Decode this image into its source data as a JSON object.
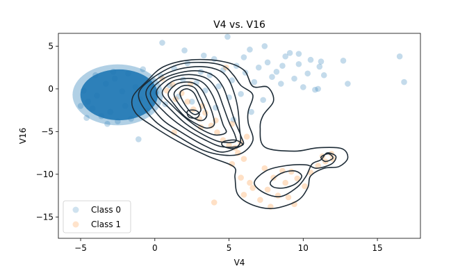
{
  "chart_data": {
    "type": "scatter",
    "title": "V4 vs. V16",
    "xlabel": "V4",
    "ylabel": "V16",
    "xlim": [
      -6.5,
      17.9
    ],
    "ylim": [
      -17.5,
      6.5
    ],
    "xticks": [
      -5,
      0,
      5,
      10,
      15
    ],
    "yticks": [
      5,
      0,
      -5,
      -10,
      -15
    ],
    "grid": false,
    "legend": {
      "placement": "lower-left"
    },
    "series": [
      {
        "name": "Class 0",
        "color": "#1f77b4",
        "alpha": 0.12,
        "points": [
          [
            -4.5,
            -1.5
          ],
          [
            -4.2,
            -2.3
          ],
          [
            -3.9,
            -0.8
          ],
          [
            -3.6,
            -3.2
          ],
          [
            -3.3,
            0.6
          ],
          [
            -3.0,
            -2.7
          ],
          [
            -2.7,
            1.2
          ],
          [
            -2.5,
            -3.8
          ],
          [
            -2.2,
            -0.3
          ],
          [
            -2.0,
            -2.0
          ],
          [
            -1.8,
            1.8
          ],
          [
            -1.6,
            -3.5
          ],
          [
            -1.3,
            0.2
          ],
          [
            -1.0,
            -1.2
          ],
          [
            -0.8,
            2.3
          ],
          [
            -0.5,
            -2.6
          ],
          [
            -0.2,
            0.9
          ],
          [
            0.1,
            -0.4
          ],
          [
            0.4,
            1.5
          ],
          [
            0.7,
            -1.8
          ],
          [
            1.0,
            0.4
          ],
          [
            1.3,
            2.4
          ],
          [
            1.6,
            -0.9
          ],
          [
            1.9,
            1.1
          ],
          [
            2.2,
            3.0
          ],
          [
            2.5,
            -1.5
          ],
          [
            2.8,
            0.7
          ],
          [
            3.1,
            2.0
          ],
          [
            3.4,
            -0.2
          ],
          [
            3.7,
            1.6
          ],
          [
            4.0,
            3.5
          ],
          [
            4.3,
            0.3
          ],
          [
            4.6,
            2.2
          ],
          [
            4.9,
            6.1
          ],
          [
            5.2,
            1.0
          ],
          [
            5.5,
            2.7
          ],
          [
            5.8,
            -0.6
          ],
          [
            6.1,
            1.9
          ],
          [
            6.4,
            4.6
          ],
          [
            6.7,
            0.8
          ],
          [
            7.0,
            2.5
          ],
          [
            7.3,
            -1.3
          ],
          [
            7.6,
            3.1
          ],
          [
            7.9,
            1.4
          ],
          [
            8.2,
            2.0
          ],
          [
            8.5,
            0.6
          ],
          [
            8.8,
            3.8
          ],
          [
            9.1,
            4.2
          ],
          [
            9.4,
            1.2
          ],
          [
            9.7,
            2.9
          ],
          [
            10.0,
            0.2
          ],
          [
            10.3,
            1.8
          ],
          [
            10.5,
            3.4
          ],
          [
            10.8,
            -0.1
          ],
          [
            11.1,
            2.6
          ],
          [
            11.4,
            1.6
          ],
          [
            11.2,
            3.2
          ],
          [
            11.0,
            0.0
          ],
          [
            12.7,
            3.3
          ],
          [
            13.0,
            0.6
          ],
          [
            16.5,
            3.8
          ],
          [
            16.8,
            0.8
          ],
          [
            -5.0,
            -2.0
          ],
          [
            -4.8,
            -0.2
          ],
          [
            -4.6,
            -3.4
          ],
          [
            -4.0,
            1.6
          ],
          [
            -3.2,
            -4.1
          ],
          [
            -2.8,
            2.0
          ],
          [
            -1.1,
            -5.9
          ],
          [
            0.5,
            5.4
          ],
          [
            2.0,
            4.5
          ],
          [
            3.3,
            3.9
          ],
          [
            5.3,
            -3.6
          ],
          [
            6.5,
            -2.7
          ],
          [
            4.1,
            -2.2
          ],
          [
            5.0,
            -1.0
          ],
          [
            6.0,
            3.7
          ],
          [
            7.4,
            5.0
          ],
          [
            8.6,
            2.7
          ],
          [
            9.7,
            4.1
          ]
        ],
        "dense_blob": {
          "x_min": -5.4,
          "x_max": 0.4,
          "y_min": -4.2,
          "y_max": 2.8
        }
      },
      {
        "name": "Class 1",
        "color": "#ff7f0e",
        "alpha": 0.12,
        "points": [
          [
            0.5,
            1.2
          ],
          [
            1.2,
            0.5
          ],
          [
            1.8,
            -0.5
          ],
          [
            2.2,
            -1.5
          ],
          [
            2.6,
            -2.4
          ],
          [
            3.0,
            -3.5
          ],
          [
            3.4,
            -2.8
          ],
          [
            3.8,
            -4.3
          ],
          [
            4.2,
            -5.1
          ],
          [
            4.6,
            -6.0
          ],
          [
            5.0,
            -6.6
          ],
          [
            5.4,
            -6.9
          ],
          [
            5.8,
            -6.3
          ],
          [
            5.6,
            -7.5
          ],
          [
            6.2,
            -5.6
          ],
          [
            6.0,
            -8.2
          ],
          [
            4.1,
            -3.7
          ],
          [
            3.2,
            -2.0
          ],
          [
            2.4,
            0.6
          ],
          [
            1.4,
            -1.2
          ],
          [
            0.8,
            -0.2
          ],
          [
            4.8,
            2.5
          ],
          [
            5.2,
            -8.8
          ],
          [
            5.8,
            -10.4
          ],
          [
            6.6,
            -11.6
          ],
          [
            6.0,
            -12.4
          ],
          [
            7.1,
            -13.0
          ],
          [
            7.8,
            -13.8
          ],
          [
            8.3,
            -12.5
          ],
          [
            8.8,
            -11.0
          ],
          [
            9.2,
            -9.7
          ],
          [
            9.6,
            -10.5
          ],
          [
            10.1,
            -11.4
          ],
          [
            8.6,
            -9.6
          ],
          [
            8.0,
            -10.4
          ],
          [
            7.6,
            -11.8
          ],
          [
            10.5,
            -9.8
          ],
          [
            11.0,
            -9.0
          ],
          [
            11.5,
            -8.5
          ],
          [
            11.9,
            -7.6
          ],
          [
            12.0,
            -8.2
          ],
          [
            11.3,
            -7.9
          ],
          [
            4.0,
            -13.3
          ],
          [
            1.3,
            -5.1
          ],
          [
            6.4,
            -11.0
          ],
          [
            9.4,
            -13.5
          ],
          [
            9.0,
            -12.7
          ],
          [
            7.4,
            -9.3
          ],
          [
            3.1,
            -4.5
          ],
          [
            5.2,
            -4.1
          ]
        ]
      }
    ],
    "contours": {
      "color": "#1d2b36",
      "levels": [
        [
          [
            -1.5,
            -1
          ],
          [
            -0.6,
            0.8
          ],
          [
            0.6,
            2.6
          ],
          [
            2.5,
            3.4
          ],
          [
            4.6,
            3.2
          ],
          [
            6.0,
            2.2
          ],
          [
            6.6,
            0.3
          ],
          [
            7.6,
            0.2
          ],
          [
            8.0,
            -1.4
          ],
          [
            7.3,
            -3.1
          ],
          [
            7.1,
            -4.6
          ],
          [
            7.4,
            -6.8
          ],
          [
            9.4,
            -7.3
          ],
          [
            11.0,
            -6.9
          ],
          [
            12.6,
            -7.0
          ],
          [
            13.0,
            -8.1
          ],
          [
            12.4,
            -9.1
          ],
          [
            11.4,
            -9.3
          ],
          [
            10.5,
            -10.2
          ],
          [
            10.3,
            -11.6
          ],
          [
            9.6,
            -13.1
          ],
          [
            8.0,
            -14.0
          ],
          [
            6.6,
            -13.6
          ],
          [
            5.6,
            -12.4
          ],
          [
            5.4,
            -10.4
          ],
          [
            5.3,
            -9.1
          ],
          [
            3.6,
            -7.9
          ],
          [
            1.6,
            -6.2
          ],
          [
            -0.1,
            -4.4
          ],
          [
            -1.3,
            -2.8
          ]
        ],
        [
          [
            -1.1,
            -0.8
          ],
          [
            -0.2,
            1.2
          ],
          [
            1.5,
            2.8
          ],
          [
            3.2,
            3.1
          ],
          [
            4.6,
            2.7
          ],
          [
            5.3,
            1.6
          ],
          [
            5.8,
            0.4
          ],
          [
            6.6,
            -0.7
          ],
          [
            6.3,
            -2.6
          ],
          [
            6.3,
            -4.0
          ],
          [
            6.6,
            -6.1
          ],
          [
            5.6,
            -7.7
          ],
          [
            3.6,
            -7.4
          ],
          [
            1.6,
            -5.6
          ],
          [
            -0.1,
            -3.6
          ]
        ],
        [
          [
            -0.6,
            -0.6
          ],
          [
            0.2,
            1.2
          ],
          [
            1.6,
            2.3
          ],
          [
            3.2,
            2.6
          ],
          [
            4.4,
            2.1
          ],
          [
            5.0,
            1.0
          ],
          [
            5.4,
            -0.8
          ],
          [
            5.6,
            -2.4
          ],
          [
            5.7,
            -4.4
          ],
          [
            5.7,
            -6.5
          ],
          [
            4.6,
            -7.4
          ],
          [
            3.4,
            -6.7
          ],
          [
            1.8,
            -5.1
          ],
          [
            0.4,
            -3.4
          ]
        ],
        [
          [
            -0.3,
            -0.6
          ],
          [
            0.5,
            1.1
          ],
          [
            1.7,
            1.9
          ],
          [
            3.0,
            2.1
          ],
          [
            4.0,
            1.5
          ],
          [
            4.6,
            0.2
          ],
          [
            5.0,
            -1.7
          ],
          [
            5.4,
            -3.8
          ],
          [
            5.8,
            -5.5
          ],
          [
            5.9,
            -6.6
          ],
          [
            4.6,
            -6.8
          ],
          [
            3.4,
            -6.0
          ],
          [
            2.0,
            -4.6
          ],
          [
            0.7,
            -2.8
          ]
        ],
        [
          [
            0.1,
            -0.5
          ],
          [
            0.8,
            1.0
          ],
          [
            1.8,
            1.6
          ],
          [
            2.8,
            1.6
          ],
          [
            3.6,
            1.1
          ],
          [
            4.2,
            -0.2
          ],
          [
            4.6,
            -2.0
          ],
          [
            5.0,
            -3.9
          ],
          [
            5.4,
            -5.4
          ],
          [
            5.4,
            -6.2
          ],
          [
            4.4,
            -6.2
          ],
          [
            3.3,
            -5.4
          ],
          [
            2.1,
            -4.1
          ],
          [
            1.0,
            -2.3
          ]
        ],
        [
          [
            0.5,
            -0.5
          ],
          [
            1.1,
            0.8
          ],
          [
            2.0,
            1.2
          ],
          [
            2.8,
            1.1
          ],
          [
            3.4,
            0.5
          ],
          [
            3.9,
            -0.8
          ],
          [
            4.3,
            -2.6
          ],
          [
            4.6,
            -4.2
          ],
          [
            4.8,
            -5.1
          ],
          [
            4.1,
            -5.4
          ],
          [
            3.2,
            -4.8
          ],
          [
            2.2,
            -3.6
          ],
          [
            1.2,
            -2.0
          ]
        ],
        [
          [
            0.9,
            -0.6
          ],
          [
            1.4,
            0.5
          ],
          [
            2.1,
            0.8
          ],
          [
            2.7,
            0.6
          ],
          [
            3.2,
            -0.2
          ],
          [
            3.6,
            -1.6
          ],
          [
            3.9,
            -3.0
          ],
          [
            4.0,
            -4.2
          ],
          [
            3.5,
            -4.6
          ],
          [
            2.8,
            -4.1
          ],
          [
            2.0,
            -3.2
          ],
          [
            1.3,
            -1.8
          ]
        ],
        [
          [
            1.3,
            -0.7
          ],
          [
            1.7,
            0.2
          ],
          [
            2.2,
            0.4
          ],
          [
            2.7,
            0.1
          ],
          [
            3.0,
            -0.8
          ],
          [
            3.3,
            -2.0
          ],
          [
            3.5,
            -3.1
          ],
          [
            3.2,
            -3.7
          ],
          [
            2.6,
            -3.4
          ],
          [
            1.9,
            -2.4
          ]
        ],
        [
          [
            1.7,
            -0.6
          ],
          [
            2.1,
            0.0
          ],
          [
            2.6,
            -0.4
          ],
          [
            2.9,
            -1.4
          ],
          [
            3.1,
            -2.5
          ],
          [
            2.7,
            -3.0
          ],
          [
            2.2,
            -2.3
          ]
        ],
        [
          [
            2.2,
            -2.6
          ],
          [
            2.7,
            -2.5
          ],
          [
            3.0,
            -2.9
          ],
          [
            2.8,
            -3.4
          ],
          [
            2.3,
            -3.3
          ]
        ],
        [
          [
            4.6,
            -6.2
          ],
          [
            5.4,
            -6.0
          ],
          [
            5.9,
            -6.5
          ],
          [
            5.3,
            -7.0
          ],
          [
            4.6,
            -6.7
          ]
        ],
        [
          [
            6.7,
            -11.0
          ],
          [
            7.5,
            -9.6
          ],
          [
            8.8,
            -9.0
          ],
          [
            10.2,
            -8.9
          ],
          [
            10.9,
            -9.3
          ],
          [
            11.9,
            -8.8
          ],
          [
            12.2,
            -7.9
          ],
          [
            11.6,
            -7.5
          ],
          [
            11.2,
            -8.3
          ],
          [
            10.6,
            -8.8
          ],
          [
            10.2,
            -10.2
          ],
          [
            9.6,
            -11.5
          ],
          [
            8.5,
            -12.6
          ],
          [
            7.4,
            -12.2
          ]
        ],
        [
          [
            7.8,
            -10.9
          ],
          [
            8.5,
            -9.9
          ],
          [
            9.4,
            -9.6
          ],
          [
            9.9,
            -10.2
          ],
          [
            9.5,
            -11.1
          ],
          [
            8.7,
            -11.6
          ],
          [
            8.0,
            -11.5
          ]
        ],
        [
          [
            11.2,
            -8.0
          ],
          [
            11.7,
            -7.6
          ],
          [
            12.0,
            -8.1
          ],
          [
            11.5,
            -8.5
          ]
        ]
      ]
    }
  }
}
